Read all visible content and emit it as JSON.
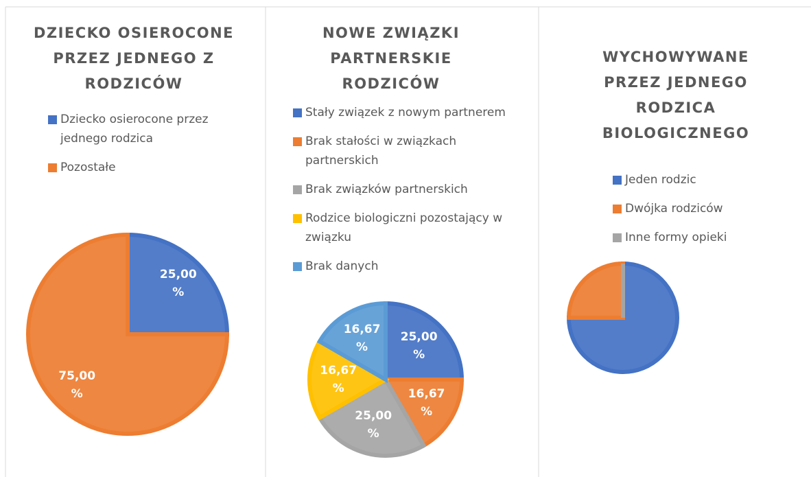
{
  "chart_data": [
    {
      "type": "pie",
      "title": "DZIECKO OSIEROCONE PRZEZ JEDNEGO Z RODZICÓW",
      "categories": [
        "Dziecko osierocone przez jednego rodzica",
        "Pozostałe"
      ],
      "values": [
        25,
        75
      ],
      "value_labels": [
        "25,00 %",
        "75,00 %"
      ],
      "colors": [
        "#4472c4",
        "#ed7d31"
      ]
    },
    {
      "type": "pie",
      "title": "NOWE ZWIĄZKI PARTNERSKIE RODZICÓW",
      "categories": [
        "Stały związek z nowym partnerem",
        "Brak stałości w związkach partnerskich",
        "Brak związków partnerskich",
        "Rodzice biologiczni pozostający w związku",
        "Brak danych"
      ],
      "values": [
        25,
        16.67,
        25,
        16.67,
        16.67
      ],
      "value_labels": [
        "25,00 %",
        "16,67 %",
        "25,00 %",
        "16,67 %",
        "16,67 %"
      ],
      "colors": [
        "#4472c4",
        "#ed7d31",
        "#a5a5a5",
        "#ffc000",
        "#5b9bd5"
      ]
    },
    {
      "type": "pie",
      "title": "WYCHOWYWANE PRZEZ JEDNEGO RODZICA BIOLOGICZNEGO",
      "categories": [
        "Jeden rodzic",
        "Dwójka rodziców",
        "Inne formy opieki"
      ],
      "values": [
        75,
        25,
        0
      ],
      "colors": [
        "#4472c4",
        "#ed7d31",
        "#a5a5a5"
      ]
    }
  ]
}
